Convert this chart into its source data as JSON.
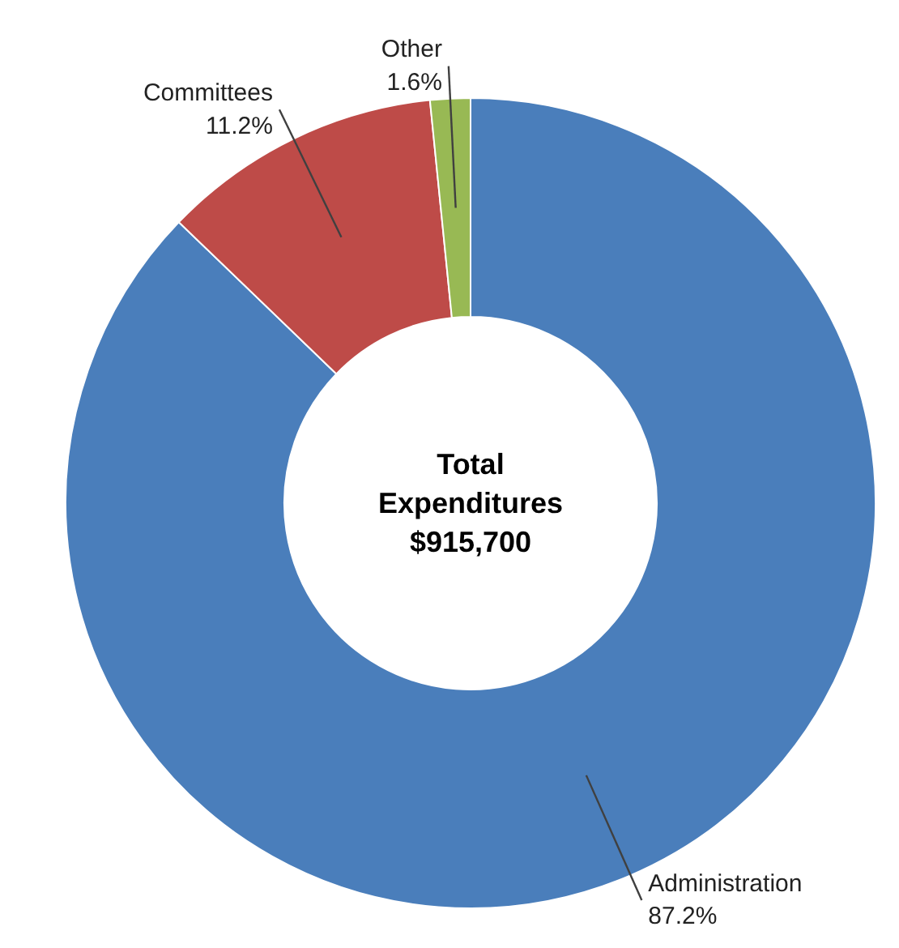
{
  "chart_data": {
    "type": "donut",
    "title": "Total\nExpenditures\n$915,700",
    "categories": [
      "Administration",
      "Committees",
      "Other"
    ],
    "values": [
      87.2,
      11.2,
      1.6
    ],
    "colors": [
      "#4a7ebb",
      "#be4b48",
      "#98b954"
    ],
    "value_labels": [
      "87.2%",
      "11.2%",
      "1.6%"
    ]
  }
}
